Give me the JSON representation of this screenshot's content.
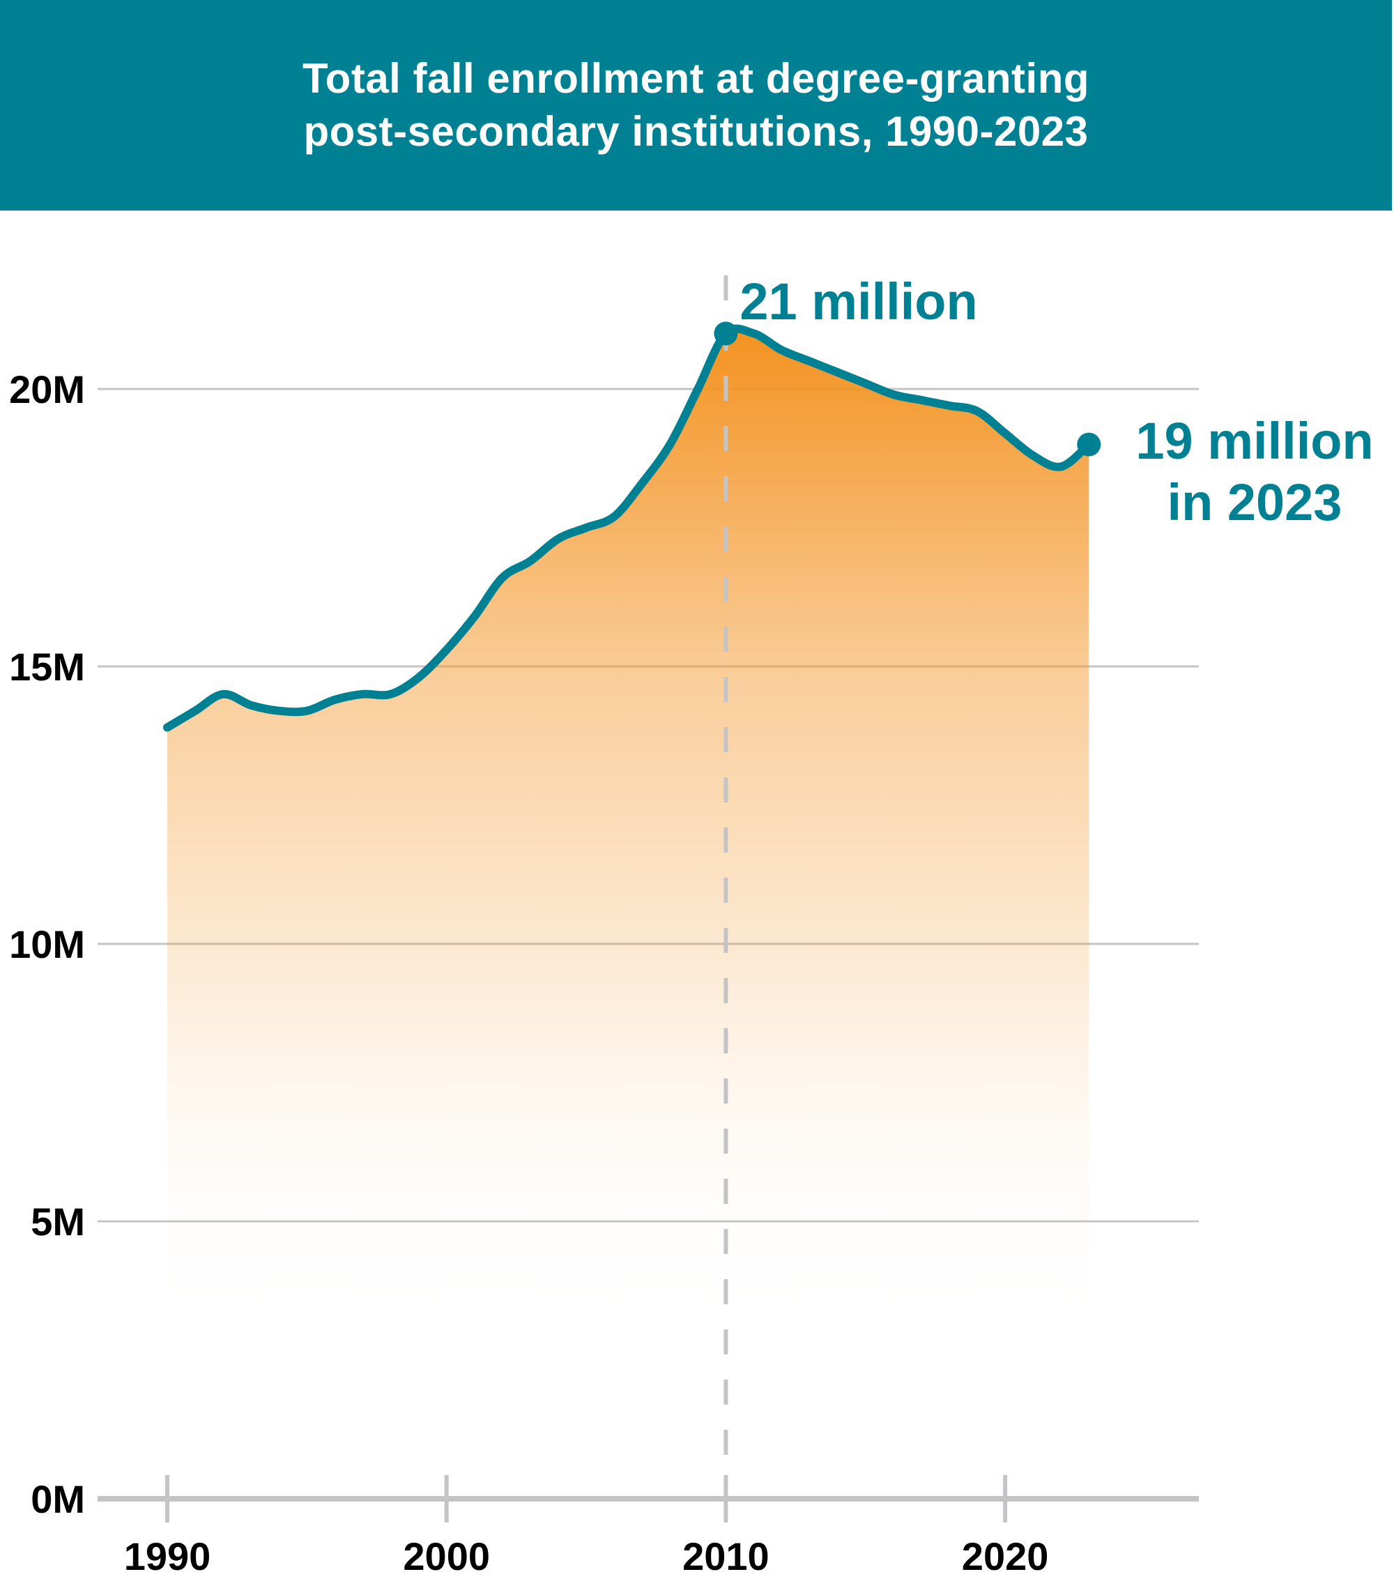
{
  "header": {
    "title_lines": [
      "Total fall enrollment at degree-granting",
      "post-secondary institutions, 1990-2023"
    ]
  },
  "colors": {
    "header_bg": "#008193",
    "line": "#008193",
    "area_top": "#F39322",
    "area_bottom": "#FFFFFF",
    "grid": "#C4C4C6",
    "text": "#000000",
    "annotation": "#008193"
  },
  "chart_data": {
    "type": "area",
    "title": "Total fall enrollment at degree-granting post-secondary institutions, 1990-2023",
    "xlabel": "",
    "ylabel": "",
    "x": [
      1990,
      1991,
      1992,
      1993,
      1994,
      1995,
      1996,
      1997,
      1998,
      1999,
      2000,
      2001,
      2002,
      2003,
      2004,
      2005,
      2006,
      2007,
      2008,
      2009,
      2010,
      2011,
      2012,
      2013,
      2014,
      2015,
      2016,
      2017,
      2018,
      2019,
      2020,
      2021,
      2022,
      2023
    ],
    "series": [
      {
        "name": "Total fall enrollment",
        "values": [
          13.9,
          14.2,
          14.5,
          14.3,
          14.2,
          14.2,
          14.4,
          14.5,
          14.5,
          14.8,
          15.3,
          15.9,
          16.6,
          16.9,
          17.3,
          17.5,
          17.7,
          18.3,
          19.0,
          20.0,
          21.0,
          21.0,
          20.7,
          20.5,
          20.3,
          20.1,
          19.9,
          19.8,
          19.7,
          19.6,
          19.2,
          18.8,
          18.6,
          19.0
        ]
      }
    ],
    "units": "millions",
    "xlim": [
      1990,
      2026
    ],
    "ylim": [
      0,
      22
    ],
    "x_ticks": [
      1990,
      2000,
      2010,
      2020
    ],
    "x_tick_labels": [
      "1990",
      "2000",
      "2010",
      "2020"
    ],
    "y_ticks": [
      0,
      5,
      10,
      15,
      20
    ],
    "y_tick_labels": [
      "0M",
      "5M",
      "10M",
      "15M",
      "20M"
    ],
    "grid": "horizontal",
    "reference_line": {
      "x": 2010,
      "style": "dashed"
    },
    "annotations": [
      {
        "x": 2010,
        "y": 21.0,
        "lines": [
          "21 million"
        ],
        "marker": true
      },
      {
        "x": 2023,
        "y": 19.0,
        "lines": [
          "19 million",
          "in 2023"
        ],
        "marker": true
      }
    ],
    "legend": "none"
  }
}
